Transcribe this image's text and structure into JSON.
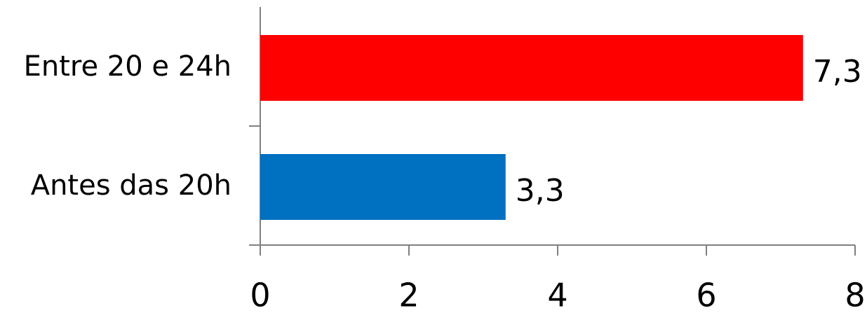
{
  "chart_data": {
    "type": "barh",
    "categories": [
      "Entre 20 e 24h",
      "Antes das 20h"
    ],
    "values": [
      7.3,
      3.3
    ],
    "value_labels": [
      "7,3",
      "3,3"
    ],
    "colors": [
      "#ff0000",
      "#0070c0"
    ],
    "xlim": [
      0,
      8
    ],
    "xticks": [
      0,
      2,
      4,
      6,
      8
    ]
  }
}
